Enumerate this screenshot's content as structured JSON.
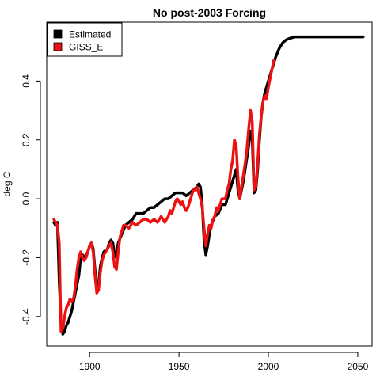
{
  "chart_data": {
    "type": "line",
    "title": "No post-2003 Forcing",
    "xlabel": "",
    "ylabel": "deg C",
    "xlim": [
      1876,
      2058
    ],
    "ylim": [
      -0.5,
      0.6
    ],
    "x_ticks": [
      1900,
      1950,
      2000,
      2050
    ],
    "y_ticks": [
      -0.4,
      -0.2,
      0.0,
      0.2,
      0.4
    ],
    "x_tick_labels": [
      "1900",
      "1950",
      "2000",
      "2050"
    ],
    "y_tick_labels": [
      "-0.4",
      "-0.2",
      "0.0",
      "0.2",
      "0.4"
    ],
    "grid": false,
    "legend_position": "top-left",
    "series": [
      {
        "name": "Estimated",
        "color": "#000000",
        "points": [
          [
            1880,
            -0.08
          ],
          [
            1881,
            -0.09
          ],
          [
            1882,
            -0.08
          ],
          [
            1883,
            -0.28
          ],
          [
            1884,
            -0.42
          ],
          [
            1885,
            -0.46
          ],
          [
            1886,
            -0.45
          ],
          [
            1887,
            -0.43
          ],
          [
            1888,
            -0.42
          ],
          [
            1889,
            -0.4
          ],
          [
            1890,
            -0.38
          ],
          [
            1892,
            -0.32
          ],
          [
            1894,
            -0.26
          ],
          [
            1895,
            -0.2
          ],
          [
            1896,
            -0.19
          ],
          [
            1897,
            -0.2
          ],
          [
            1898,
            -0.19
          ],
          [
            1899,
            -0.18
          ],
          [
            1900,
            -0.16
          ],
          [
            1901,
            -0.15
          ],
          [
            1902,
            -0.17
          ],
          [
            1903,
            -0.24
          ],
          [
            1904,
            -0.3
          ],
          [
            1905,
            -0.29
          ],
          [
            1906,
            -0.23
          ],
          [
            1907,
            -0.2
          ],
          [
            1908,
            -0.18
          ],
          [
            1910,
            -0.17
          ],
          [
            1911,
            -0.15
          ],
          [
            1912,
            -0.14
          ],
          [
            1913,
            -0.15
          ],
          [
            1914,
            -0.19
          ],
          [
            1915,
            -0.2
          ],
          [
            1916,
            -0.15
          ],
          [
            1918,
            -0.12
          ],
          [
            1920,
            -0.09
          ],
          [
            1922,
            -0.08
          ],
          [
            1924,
            -0.07
          ],
          [
            1926,
            -0.05
          ],
          [
            1928,
            -0.05
          ],
          [
            1930,
            -0.05
          ],
          [
            1932,
            -0.04
          ],
          [
            1934,
            -0.03
          ],
          [
            1936,
            -0.03
          ],
          [
            1938,
            -0.02
          ],
          [
            1940,
            -0.01
          ],
          [
            1942,
            0.0
          ],
          [
            1944,
            0.0
          ],
          [
            1946,
            0.01
          ],
          [
            1948,
            0.02
          ],
          [
            1950,
            0.02
          ],
          [
            1952,
            0.02
          ],
          [
            1954,
            0.01
          ],
          [
            1956,
            0.02
          ],
          [
            1958,
            0.03
          ],
          [
            1960,
            0.04
          ],
          [
            1961,
            0.05
          ],
          [
            1962,
            0.04
          ],
          [
            1963,
            -0.02
          ],
          [
            1964,
            -0.14
          ],
          [
            1965,
            -0.19
          ],
          [
            1966,
            -0.16
          ],
          [
            1967,
            -0.12
          ],
          [
            1968,
            -0.09
          ],
          [
            1970,
            -0.06
          ],
          [
            1972,
            -0.05
          ],
          [
            1974,
            -0.02
          ],
          [
            1976,
            -0.02
          ],
          [
            1978,
            0.02
          ],
          [
            1980,
            0.06
          ],
          [
            1981,
            0.08
          ],
          [
            1982,
            0.1
          ],
          [
            1983,
            0.03
          ],
          [
            1984,
            0.0
          ],
          [
            1985,
            0.03
          ],
          [
            1986,
            0.06
          ],
          [
            1987,
            0.1
          ],
          [
            1988,
            0.14
          ],
          [
            1989,
            0.18
          ],
          [
            1990,
            0.23
          ],
          [
            1991,
            0.2
          ],
          [
            1992,
            0.02
          ],
          [
            1993,
            0.03
          ],
          [
            1994,
            0.1
          ],
          [
            1995,
            0.2
          ],
          [
            1996,
            0.28
          ],
          [
            1997,
            0.33
          ],
          [
            1998,
            0.36
          ],
          [
            1999,
            0.38
          ],
          [
            2000,
            0.4
          ],
          [
            2002,
            0.44
          ],
          [
            2004,
            0.48
          ],
          [
            2006,
            0.51
          ],
          [
            2008,
            0.53
          ],
          [
            2010,
            0.54
          ],
          [
            2012,
            0.545
          ],
          [
            2015,
            0.55
          ],
          [
            2020,
            0.55
          ],
          [
            2025,
            0.55
          ],
          [
            2030,
            0.55
          ],
          [
            2035,
            0.55
          ],
          [
            2040,
            0.55
          ],
          [
            2045,
            0.55
          ],
          [
            2050,
            0.55
          ],
          [
            2053,
            0.55
          ]
        ]
      },
      {
        "name": "GISS_E",
        "color": "#ee1111",
        "points": [
          [
            1880,
            -0.07
          ],
          [
            1881,
            -0.08
          ],
          [
            1882,
            -0.09
          ],
          [
            1883,
            -0.15
          ],
          [
            1884,
            -0.45
          ],
          [
            1885,
            -0.44
          ],
          [
            1886,
            -0.4
          ],
          [
            1887,
            -0.37
          ],
          [
            1888,
            -0.36
          ],
          [
            1889,
            -0.34
          ],
          [
            1890,
            -0.35
          ],
          [
            1891,
            -0.34
          ],
          [
            1892,
            -0.3
          ],
          [
            1893,
            -0.24
          ],
          [
            1894,
            -0.2
          ],
          [
            1895,
            -0.18
          ],
          [
            1896,
            -0.2
          ],
          [
            1897,
            -0.21
          ],
          [
            1898,
            -0.2
          ],
          [
            1899,
            -0.18
          ],
          [
            1900,
            -0.16
          ],
          [
            1901,
            -0.15
          ],
          [
            1902,
            -0.18
          ],
          [
            1903,
            -0.26
          ],
          [
            1904,
            -0.32
          ],
          [
            1905,
            -0.31
          ],
          [
            1906,
            -0.25
          ],
          [
            1907,
            -0.21
          ],
          [
            1908,
            -0.19
          ],
          [
            1909,
            -0.18
          ],
          [
            1910,
            -0.17
          ],
          [
            1911,
            -0.16
          ],
          [
            1912,
            -0.15
          ],
          [
            1913,
            -0.18
          ],
          [
            1914,
            -0.23
          ],
          [
            1915,
            -0.24
          ],
          [
            1916,
            -0.18
          ],
          [
            1917,
            -0.13
          ],
          [
            1918,
            -0.11
          ],
          [
            1919,
            -0.09
          ],
          [
            1920,
            -0.09
          ],
          [
            1922,
            -0.1
          ],
          [
            1924,
            -0.08
          ],
          [
            1926,
            -0.09
          ],
          [
            1928,
            -0.08
          ],
          [
            1930,
            -0.07
          ],
          [
            1932,
            -0.07
          ],
          [
            1934,
            -0.08
          ],
          [
            1936,
            -0.07
          ],
          [
            1938,
            -0.08
          ],
          [
            1940,
            -0.06
          ],
          [
            1942,
            -0.08
          ],
          [
            1944,
            -0.06
          ],
          [
            1945,
            -0.04
          ],
          [
            1946,
            -0.05
          ],
          [
            1947,
            -0.03
          ],
          [
            1948,
            -0.01
          ],
          [
            1949,
            0.0
          ],
          [
            1950,
            -0.01
          ],
          [
            1951,
            -0.02
          ],
          [
            1952,
            -0.01
          ],
          [
            1953,
            -0.03
          ],
          [
            1954,
            -0.04
          ],
          [
            1955,
            -0.03
          ],
          [
            1956,
            -0.01
          ],
          [
            1957,
            0.01
          ],
          [
            1958,
            0.03
          ],
          [
            1959,
            0.03
          ],
          [
            1960,
            0.04
          ],
          [
            1961,
            0.02
          ],
          [
            1962,
            0.0
          ],
          [
            1963,
            -0.03
          ],
          [
            1964,
            -0.1
          ],
          [
            1965,
            -0.16
          ],
          [
            1966,
            -0.12
          ],
          [
            1967,
            -0.09
          ],
          [
            1968,
            -0.1
          ],
          [
            1969,
            -0.07
          ],
          [
            1970,
            -0.06
          ],
          [
            1971,
            -0.03
          ],
          [
            1972,
            -0.04
          ],
          [
            1973,
            -0.02
          ],
          [
            1974,
            0.0
          ],
          [
            1975,
            0.0
          ],
          [
            1976,
            0.0
          ],
          [
            1977,
            0.03
          ],
          [
            1978,
            0.05
          ],
          [
            1979,
            0.1
          ],
          [
            1980,
            0.13
          ],
          [
            1981,
            0.2
          ],
          [
            1982,
            0.18
          ],
          [
            1983,
            0.07
          ],
          [
            1984,
            0.0
          ],
          [
            1985,
            0.04
          ],
          [
            1986,
            0.08
          ],
          [
            1987,
            0.12
          ],
          [
            1988,
            0.17
          ],
          [
            1989,
            0.24
          ],
          [
            1990,
            0.3
          ],
          [
            1991,
            0.26
          ],
          [
            1992,
            0.03
          ],
          [
            1993,
            0.04
          ],
          [
            1994,
            0.12
          ],
          [
            1995,
            0.22
          ],
          [
            1996,
            0.28
          ],
          [
            1997,
            0.33
          ],
          [
            1998,
            0.35
          ],
          [
            1999,
            0.34
          ],
          [
            2000,
            0.38
          ],
          [
            2001,
            0.41
          ],
          [
            2002,
            0.44
          ],
          [
            2003,
            0.47
          ]
        ]
      }
    ]
  }
}
